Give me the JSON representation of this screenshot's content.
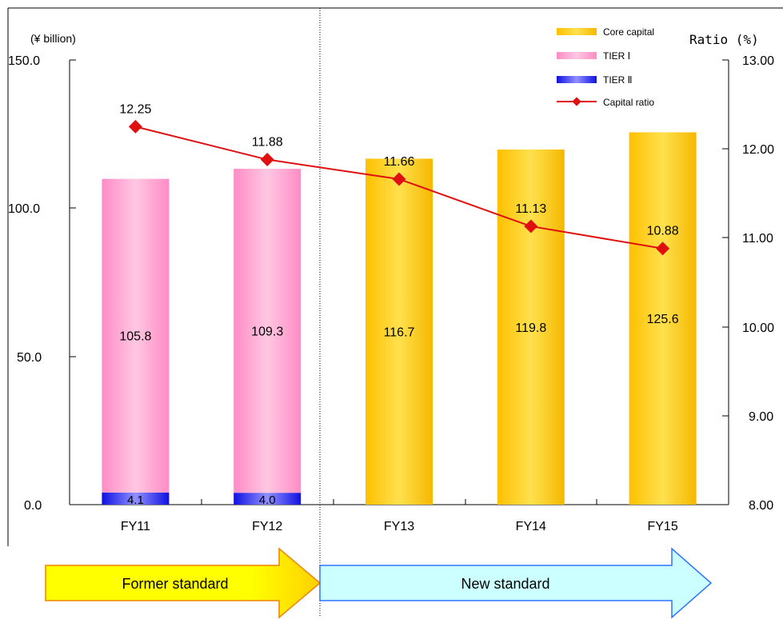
{
  "chart_data": {
    "type": "bar",
    "categories": [
      "FY11",
      "FY12",
      "FY13",
      "FY14",
      "FY15"
    ],
    "y_left_unit": "(¥ billion)",
    "y_right_unit": "Ratio (%)",
    "y_left_ticks": [
      "150.0",
      "100.0",
      "50.0",
      "0.0"
    ],
    "y_right_ticks": [
      "13.00",
      "12.00",
      "11.00",
      "10.00",
      "9.00",
      "8.00"
    ],
    "ylim_left": [
      0,
      150
    ],
    "ylim_right": [
      8,
      13
    ],
    "series": [
      {
        "name": "Core capital",
        "kind": "bar",
        "color": "#FFC000",
        "values": [
          null,
          null,
          116.7,
          119.8,
          125.6
        ],
        "labels": [
          "",
          "",
          "116.7",
          "119.8",
          "125.6"
        ]
      },
      {
        "name": "TIER Ⅰ",
        "kind": "bar",
        "color": "#FF99CC",
        "values": [
          105.8,
          109.3,
          null,
          null,
          null
        ],
        "labels": [
          "105.8",
          "109.3",
          "",
          "",
          ""
        ]
      },
      {
        "name": "TIER Ⅱ",
        "kind": "bar",
        "color": "#0000FF",
        "values": [
          4.1,
          4.0,
          null,
          null,
          null
        ],
        "labels": [
          "4.1",
          "4.0",
          "",
          "",
          ""
        ]
      },
      {
        "name": "Capital ratio",
        "kind": "line",
        "axis": "right",
        "color": "#E01010",
        "values": [
          12.25,
          11.88,
          11.66,
          11.13,
          10.88
        ],
        "labels": [
          "12.25",
          "11.88",
          "11.66",
          "11.13",
          "10.88"
        ]
      }
    ],
    "legend_position": "top-right",
    "grid": false
  },
  "banners": {
    "former": "Former standard",
    "new": "New standard",
    "former_color": "#FFFF00",
    "new_color": "#CCFFFF"
  }
}
